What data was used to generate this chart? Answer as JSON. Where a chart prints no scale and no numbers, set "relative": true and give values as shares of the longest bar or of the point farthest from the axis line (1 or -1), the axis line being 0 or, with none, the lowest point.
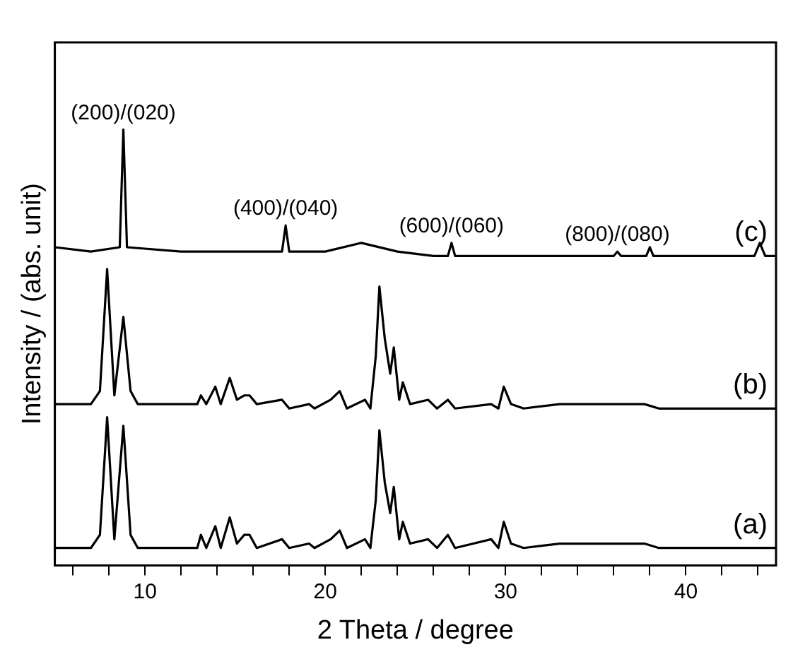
{
  "chart_data": {
    "type": "line",
    "relative": true,
    "xlabel": "2 Theta / degree",
    "ylabel": "Intensity / (abs. unit)",
    "xlim": [
      5,
      45
    ],
    "xticks": [
      {
        "value": 6,
        "label": null
      },
      {
        "value": 8,
        "label": null
      },
      10,
      {
        "value": 12,
        "label": null
      },
      {
        "value": 14,
        "label": null
      },
      {
        "value": 16,
        "label": null
      },
      {
        "value": 18,
        "label": null
      },
      20,
      {
        "value": 22,
        "label": null
      },
      {
        "value": 24,
        "label": null
      },
      {
        "value": 26,
        "label": null
      },
      {
        "value": 28,
        "label": null
      },
      30,
      {
        "value": 32,
        "label": null
      },
      {
        "value": 34,
        "label": null
      },
      {
        "value": 36,
        "label": null
      },
      {
        "value": 38,
        "label": null
      },
      40,
      {
        "value": 42,
        "label": null
      },
      {
        "value": 44,
        "label": null
      }
    ],
    "marker": "none",
    "grid": false,
    "legend": false,
    "series": [
      {
        "name": "(a)",
        "color": "#000000",
        "x": [
          5,
          7,
          7.5,
          7.9,
          8.3,
          8.8,
          9.2,
          9.6,
          12.9,
          13.1,
          13.4,
          13.9,
          14.2,
          14.7,
          15.1,
          15.5,
          15.8,
          16.2,
          17.6,
          18,
          19.1,
          19.4,
          20.3,
          20.8,
          21.2,
          22.2,
          22.5,
          22.8,
          23,
          23.3,
          23.6,
          23.8,
          24.1,
          24.3,
          24.7,
          25.7,
          26.2,
          26.8,
          27.2,
          29.2,
          29.6,
          29.9,
          30.3,
          31,
          33,
          35.7,
          37.7,
          38.5,
          45
        ],
        "values": [
          0.04,
          0.04,
          0.07,
          0.34,
          0.06,
          0.32,
          0.07,
          0.04,
          0.04,
          0.07,
          0.04,
          0.09,
          0.04,
          0.11,
          0.05,
          0.07,
          0.07,
          0.04,
          0.06,
          0.04,
          0.05,
          0.04,
          0.06,
          0.08,
          0.04,
          0.06,
          0.04,
          0.15,
          0.31,
          0.19,
          0.12,
          0.18,
          0.06,
          0.1,
          0.05,
          0.06,
          0.04,
          0.07,
          0.04,
          0.06,
          0.04,
          0.1,
          0.05,
          0.04,
          0.05,
          0.05,
          0.05,
          0.04,
          0.04
        ]
      },
      {
        "name": "(b)",
        "color": "#000000",
        "x": [
          5,
          7,
          7.5,
          7.9,
          8.3,
          8.8,
          9.2,
          9.6,
          12.9,
          13.1,
          13.4,
          13.9,
          14.2,
          14.7,
          15.1,
          15.5,
          15.8,
          16.2,
          17.6,
          18,
          19.1,
          19.4,
          20.3,
          20.8,
          21.2,
          22.2,
          22.5,
          22.8,
          23,
          23.3,
          23.6,
          23.8,
          24.1,
          24.3,
          24.7,
          25.7,
          26.2,
          26.8,
          27.2,
          29.2,
          29.6,
          29.9,
          30.3,
          31,
          33,
          35.7,
          37.7,
          38.5,
          45
        ],
        "values": [
          0.37,
          0.37,
          0.4,
          0.68,
          0.39,
          0.57,
          0.4,
          0.37,
          0.37,
          0.39,
          0.37,
          0.41,
          0.37,
          0.43,
          0.38,
          0.39,
          0.39,
          0.37,
          0.38,
          0.36,
          0.37,
          0.36,
          0.38,
          0.4,
          0.36,
          0.38,
          0.36,
          0.48,
          0.64,
          0.52,
          0.44,
          0.5,
          0.38,
          0.42,
          0.37,
          0.38,
          0.36,
          0.38,
          0.36,
          0.37,
          0.36,
          0.41,
          0.37,
          0.36,
          0.37,
          0.37,
          0.37,
          0.36,
          0.36
        ]
      },
      {
        "name": "(c)",
        "color": "#000000",
        "x": [
          5,
          7,
          8.6,
          8.8,
          9,
          12,
          17.6,
          17.8,
          18,
          20,
          22,
          24,
          26,
          26.8,
          27,
          27.2,
          30,
          36,
          36.2,
          36.4,
          37.8,
          38,
          38.2,
          43.8,
          44.1,
          44.4,
          45
        ],
        "values": [
          0.73,
          0.72,
          0.73,
          1,
          0.73,
          0.72,
          0.72,
          0.78,
          0.72,
          0.72,
          0.74,
          0.72,
          0.71,
          0.71,
          0.74,
          0.71,
          0.71,
          0.71,
          0.72,
          0.71,
          0.71,
          0.73,
          0.71,
          0.71,
          0.74,
          0.71,
          0.71
        ]
      }
    ],
    "annotations": [
      {
        "text": "(200)/(020)",
        "x": 8.8,
        "y": 1
      },
      {
        "text": "(400)/(040)",
        "x": 17.8,
        "y": 0.78
      },
      {
        "text": "(600)/(060)",
        "x": 27,
        "y": 0.74
      },
      {
        "text": "(800)/(080)",
        "x": 36.2,
        "y": 0.72
      }
    ]
  }
}
